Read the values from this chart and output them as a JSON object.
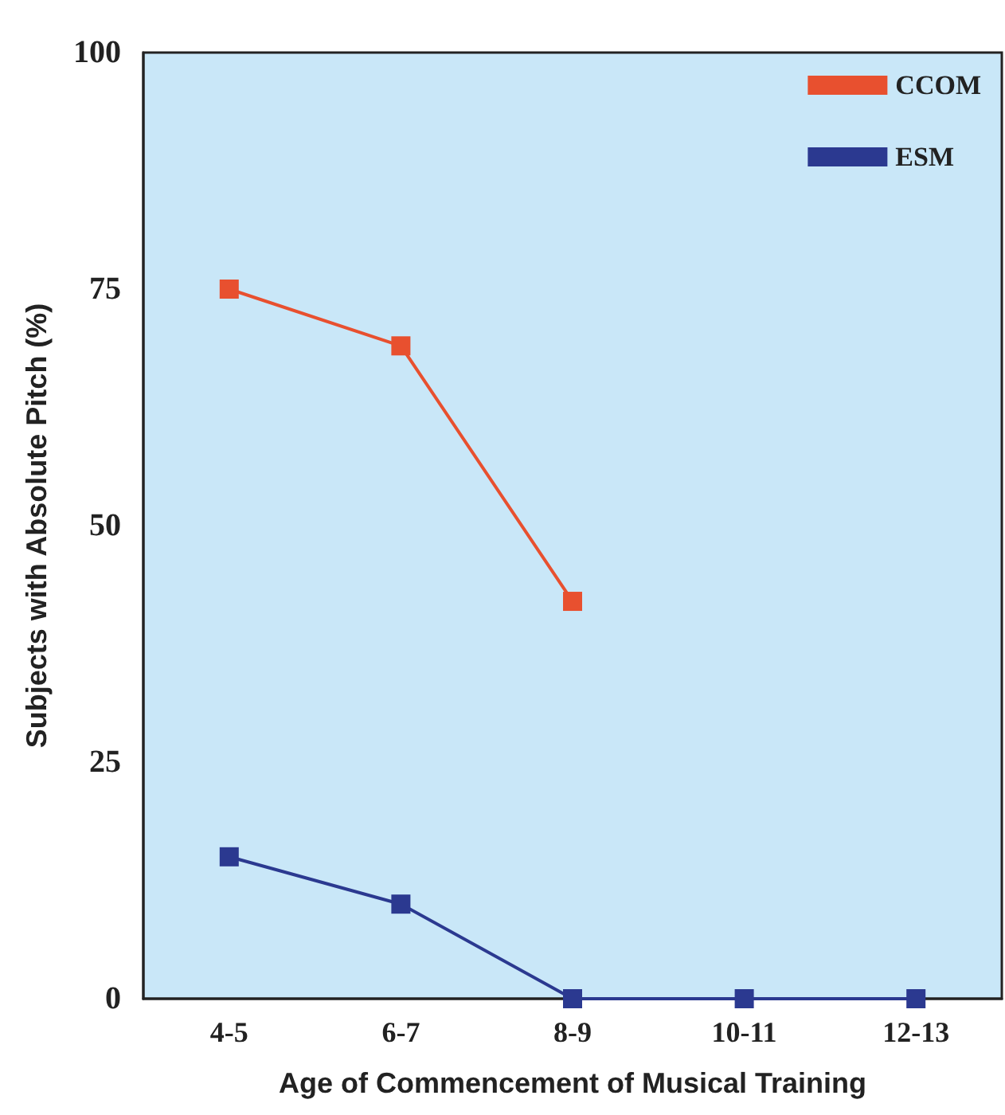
{
  "chart_data": {
    "type": "line",
    "xlabel": "Age of Commencement of Musical Training",
    "ylabel": "Subjects with Absolute Pitch (%)",
    "categories": [
      "4-5",
      "6-7",
      "8-9",
      "10-11",
      "12-13"
    ],
    "series": [
      {
        "name": "CCOM",
        "color": "#e8502f",
        "values": [
          75,
          69,
          42,
          null,
          null
        ]
      },
      {
        "name": "ESM",
        "color": "#2b3990",
        "values": [
          15,
          10,
          0,
          0,
          0
        ]
      }
    ],
    "ylim": [
      0,
      100
    ],
    "yticks": [
      0,
      25,
      50,
      75,
      100
    ],
    "grid": false,
    "legend": "top right",
    "marker": "square",
    "line_style": "solid"
  }
}
